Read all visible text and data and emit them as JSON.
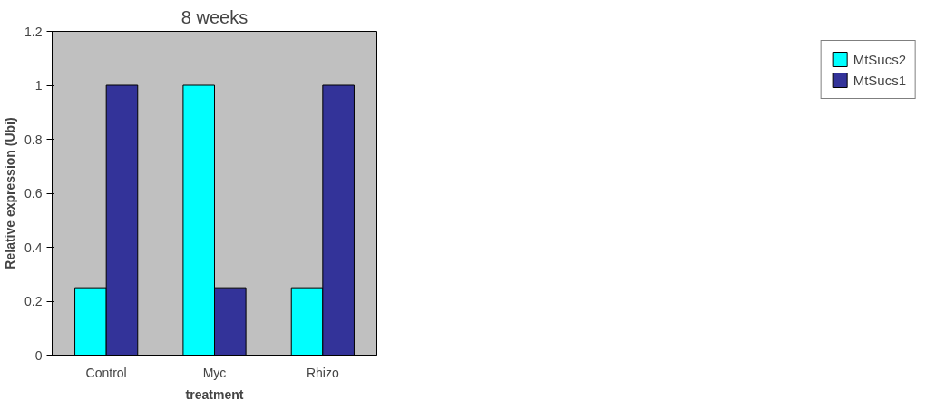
{
  "chart_data": {
    "type": "bar",
    "title": "8 weeks",
    "xlabel": "treatment",
    "ylabel": "Relative expression (Ubi)",
    "categories": [
      "Control",
      "Myc",
      "Rhizo"
    ],
    "series": [
      {
        "name": "MtSucs2",
        "color": "#00ffff",
        "values": [
          0.25,
          1,
          0.25
        ]
      },
      {
        "name": "MtSucs1",
        "color": "#333399",
        "values": [
          1,
          0.25,
          1
        ]
      }
    ],
    "ylim": [
      0,
      1.2
    ],
    "yticks": [
      0,
      0.2,
      0.4,
      0.6,
      0.8,
      1,
      1.2
    ],
    "grid": false,
    "legend": "right"
  }
}
